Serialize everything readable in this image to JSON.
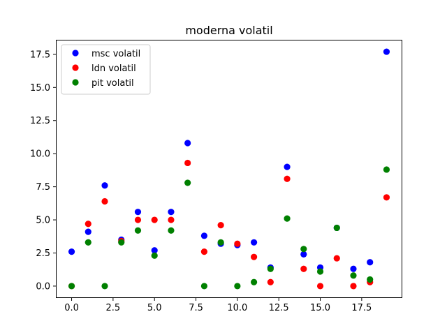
{
  "chart_data": {
    "type": "scatter",
    "title": "moderna volatil",
    "xlabel": "",
    "ylabel": "",
    "xlim": [
      -0.95,
      19.95
    ],
    "ylim": [
      -0.9,
      18.6
    ],
    "xticks": [
      0.0,
      2.5,
      5.0,
      7.5,
      10.0,
      12.5,
      15.0,
      17.5
    ],
    "xtick_labels": [
      "0.0",
      "2.5",
      "5.0",
      "7.5",
      "10.0",
      "12.5",
      "15.0",
      "17.5"
    ],
    "yticks": [
      0.0,
      2.5,
      5.0,
      7.5,
      10.0,
      12.5,
      15.0,
      17.5
    ],
    "ytick_labels": [
      "0.0",
      "2.5",
      "5.0",
      "7.5",
      "10.0",
      "12.5",
      "15.0",
      "17.5"
    ],
    "grid": false,
    "legend_position": "top-left",
    "x": [
      0,
      1,
      2,
      3,
      4,
      5,
      6,
      7,
      8,
      9,
      10,
      11,
      12,
      13,
      14,
      15,
      16,
      17,
      18,
      19
    ],
    "series": [
      {
        "name": "msc volatil",
        "color": "#0000ff",
        "values": [
          2.6,
          4.1,
          7.6,
          3.5,
          5.6,
          2.7,
          5.6,
          10.8,
          3.8,
          3.2,
          3.1,
          3.3,
          1.4,
          9.0,
          2.4,
          1.4,
          4.4,
          1.3,
          1.8,
          17.7
        ]
      },
      {
        "name": "ldn volatil",
        "color": "#ff0000",
        "values": [
          0.0,
          4.7,
          6.4,
          3.4,
          5.0,
          5.0,
          5.0,
          9.3,
          2.6,
          4.6,
          3.2,
          2.2,
          0.3,
          8.1,
          1.3,
          0.0,
          2.1,
          0.0,
          0.3,
          6.7
        ]
      },
      {
        "name": "pit volatil",
        "color": "#008000",
        "values": [
          0.0,
          3.3,
          0.0,
          3.3,
          4.2,
          2.3,
          4.2,
          7.8,
          0.0,
          3.3,
          0.0,
          0.3,
          1.3,
          5.1,
          2.8,
          1.1,
          4.4,
          0.8,
          0.5,
          8.8
        ]
      }
    ]
  }
}
